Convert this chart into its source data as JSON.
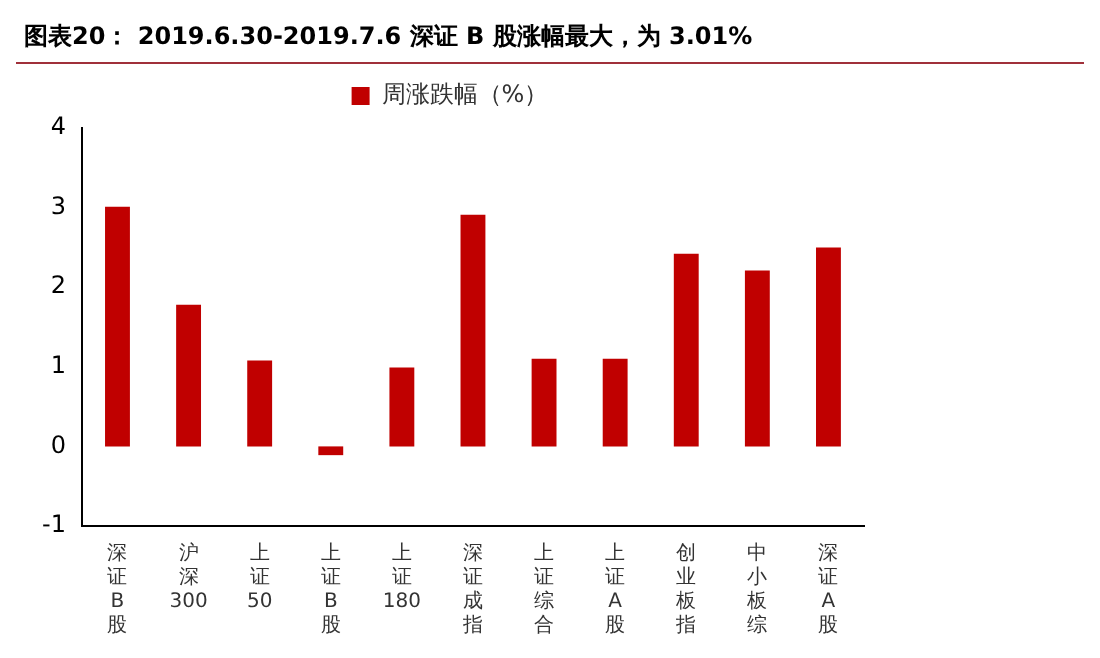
{
  "chart_data": {
    "type": "bar",
    "title": "图表20：  2019.6.30-2019.7.6 深证 B 股涨幅最大，为 3.01%",
    "categories": [
      "深证B股",
      "沪深300",
      "上证50",
      "上证B股",
      "上证180",
      "深证成指",
      "上证综合",
      "上证A股",
      "创业板指",
      "中小板综",
      "深证A股"
    ],
    "series": [
      {
        "name": "周涨跌幅（%）",
        "color": "#c00000",
        "values": [
          3.01,
          1.78,
          1.08,
          -0.11,
          0.99,
          2.91,
          1.1,
          1.1,
          2.42,
          2.21,
          2.5
        ]
      }
    ],
    "ylim": [
      -1,
      4
    ],
    "yticks": [
      -1,
      0,
      1,
      2,
      3,
      4
    ],
    "grid": false,
    "legend": "top"
  }
}
